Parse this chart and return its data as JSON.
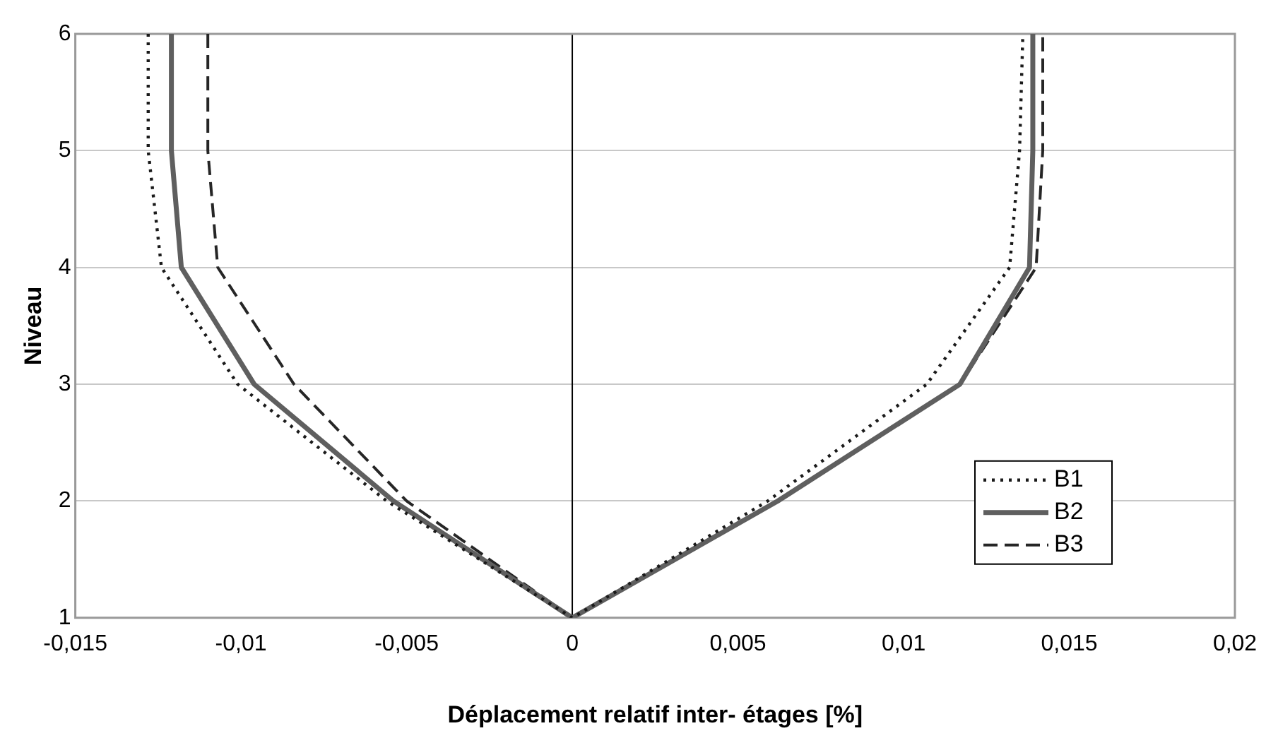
{
  "chart_data": {
    "type": "line",
    "xlabel": "Déplacement relatif inter- étages [%]",
    "ylabel": "Niveau",
    "xlim": [
      -0.015,
      0.02
    ],
    "xticks": [
      {
        "value": -0.015,
        "label": "-0,015"
      },
      {
        "value": -0.01,
        "label": "-0,01"
      },
      {
        "value": -0.005,
        "label": "-0,005"
      },
      0,
      {
        "value": 0.005,
        "label": "0,005"
      },
      {
        "value": 0.01,
        "label": "0,01"
      },
      {
        "value": 0.015,
        "label": "0,015"
      },
      {
        "value": 0.02,
        "label": "0,02"
      }
    ],
    "ylim": [
      1,
      6
    ],
    "yticks": [
      1,
      2,
      3,
      4,
      5,
      6
    ],
    "grid": "y",
    "legend": "bottom right",
    "marker": "none",
    "ref_lines": [
      {
        "axis": "x",
        "value": 0,
        "color": "#000000"
      }
    ],
    "series": [
      {
        "name": "B1",
        "color": "#1a1a1a",
        "line_style": "dotted",
        "x": [
          -0.0128,
          -0.0128,
          -0.0124,
          -0.0101,
          -0.0056,
          0,
          0.0059,
          0.0107,
          0.0132,
          0.0135,
          0.0136
        ],
        "values": [
          6,
          5,
          4,
          3,
          2,
          1,
          2,
          3,
          4,
          5,
          6
        ]
      },
      {
        "name": "B2",
        "color": "#5f5f5f",
        "line_style": "solid",
        "x": [
          -0.0121,
          -0.0121,
          -0.0118,
          -0.0096,
          -0.0054,
          0,
          0.0062,
          0.0117,
          0.0138,
          0.0139,
          0.0139
        ],
        "values": [
          6,
          5,
          4,
          3,
          2,
          1,
          2,
          3,
          4,
          5,
          6
        ]
      },
      {
        "name": "B3",
        "color": "#262626",
        "line_style": "dashed",
        "x": [
          -0.011,
          -0.011,
          -0.0107,
          -0.0084,
          -0.005,
          0,
          0.0062,
          0.0117,
          0.014,
          0.0142,
          0.0142
        ],
        "values": [
          6,
          5,
          4,
          3,
          2,
          1,
          2,
          3,
          4,
          5,
          6
        ]
      }
    ]
  }
}
